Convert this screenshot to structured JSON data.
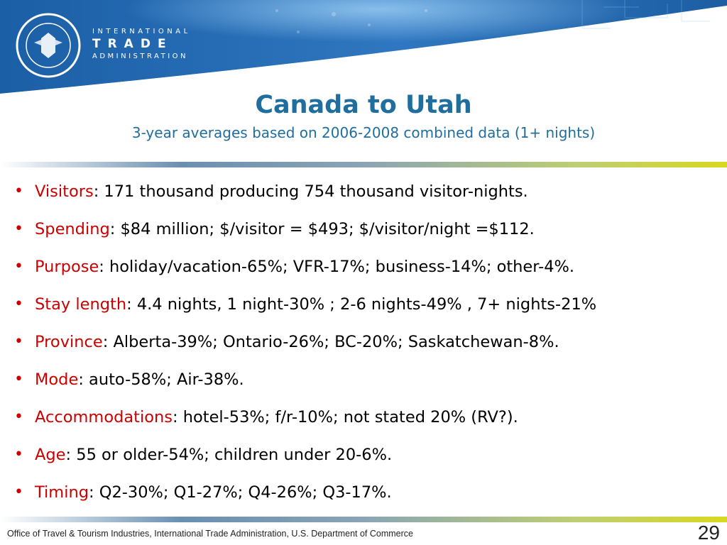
{
  "header": {
    "agency_line1": "INTERNATIONAL",
    "agency_line2": "TRADE",
    "agency_line3": "ADMINISTRATION",
    "seal_icon": "department-of-commerce-seal",
    "banner_colors": [
      "#1b5fa6",
      "#3f89cc",
      "#5fa4dd"
    ]
  },
  "title": "Canada to Utah",
  "subtitle": "3-year averages based on 2006-2008 combined data (1+ nights)",
  "bullets": [
    {
      "key": "Visitors",
      "text": ": 171 thousand producing 754 thousand visitor-nights."
    },
    {
      "key": "Spending",
      "text": ": $84 million;  $/visitor = $493; $/visitor/night =$112."
    },
    {
      "key": "Purpose",
      "text": ": holiday/vacation-65%; VFR-17%; business-14%; other-4%."
    },
    {
      "key": "Stay length",
      "text": ":  4.4 nights, 1 night-30% ; 2-6 nights-49% , 7+ nights-21%"
    },
    {
      "key": "Province",
      "text": ":  Alberta-39%; Ontario-26%; BC-20%; Saskatchewan-8%."
    },
    {
      "key": "Mode",
      "text": ":  auto-58%; Air-38%."
    },
    {
      "key": "Accommodations",
      "text": ": hotel-53%; f/r-10%; not stated 20% (RV?)."
    },
    {
      "key": "Age",
      "text": ":  55 or older-54%; children under 20-6%."
    },
    {
      "key": "Timing",
      "text": ": Q2-30%; Q1-27%; Q4-26%; Q3-17%."
    }
  ],
  "footer": "Office of Travel & Tourism Industries, International Trade Administration, U.S. Department of Commerce",
  "page_number": "29",
  "colors": {
    "title": "#1f6e9e",
    "key": "#cc0000",
    "accent_rule": "#d8d81e"
  }
}
